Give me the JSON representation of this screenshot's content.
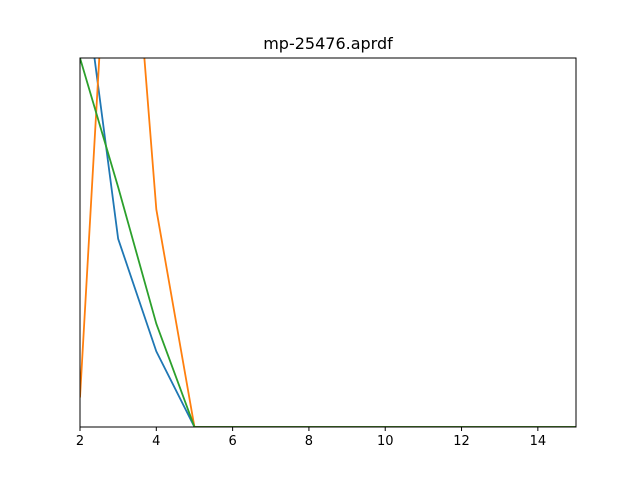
{
  "chart_data": {
    "type": "line",
    "title": "mp-25476.aprdf",
    "xlabel": "",
    "ylabel": "",
    "xlim": [
      2,
      15
    ],
    "ylim": [
      0,
      1
    ],
    "grid": false,
    "x_ticks": [
      2,
      4,
      6,
      8,
      10,
      12,
      14
    ],
    "y_ticks": [],
    "series": [
      {
        "color": "#1f77b4",
        "x": [
          2,
          3,
          4,
          5,
          6,
          7,
          8,
          9,
          10,
          11,
          12,
          13,
          14,
          15
        ],
        "y": [
          1.3,
          0.51,
          0.205,
          0,
          0,
          0,
          0,
          0,
          0,
          0,
          0,
          0,
          0,
          0
        ]
      },
      {
        "color": "#ff7f0e",
        "x": [
          2,
          3,
          4,
          5,
          6,
          7,
          8,
          9,
          10,
          11,
          12,
          13,
          14,
          15
        ],
        "y": [
          0.08,
          1.9,
          0.59,
          0,
          0,
          0,
          0,
          0,
          0,
          0,
          0,
          0,
          0,
          0
        ]
      },
      {
        "color": "#2ca02c",
        "x": [
          2,
          3,
          4,
          5,
          6,
          7,
          8,
          9,
          10,
          11,
          12,
          13,
          14,
          15
        ],
        "y": [
          1.0,
          0.65,
          0.28,
          0,
          0,
          0,
          0,
          0,
          0,
          0,
          0,
          0,
          0,
          0
        ]
      }
    ]
  }
}
